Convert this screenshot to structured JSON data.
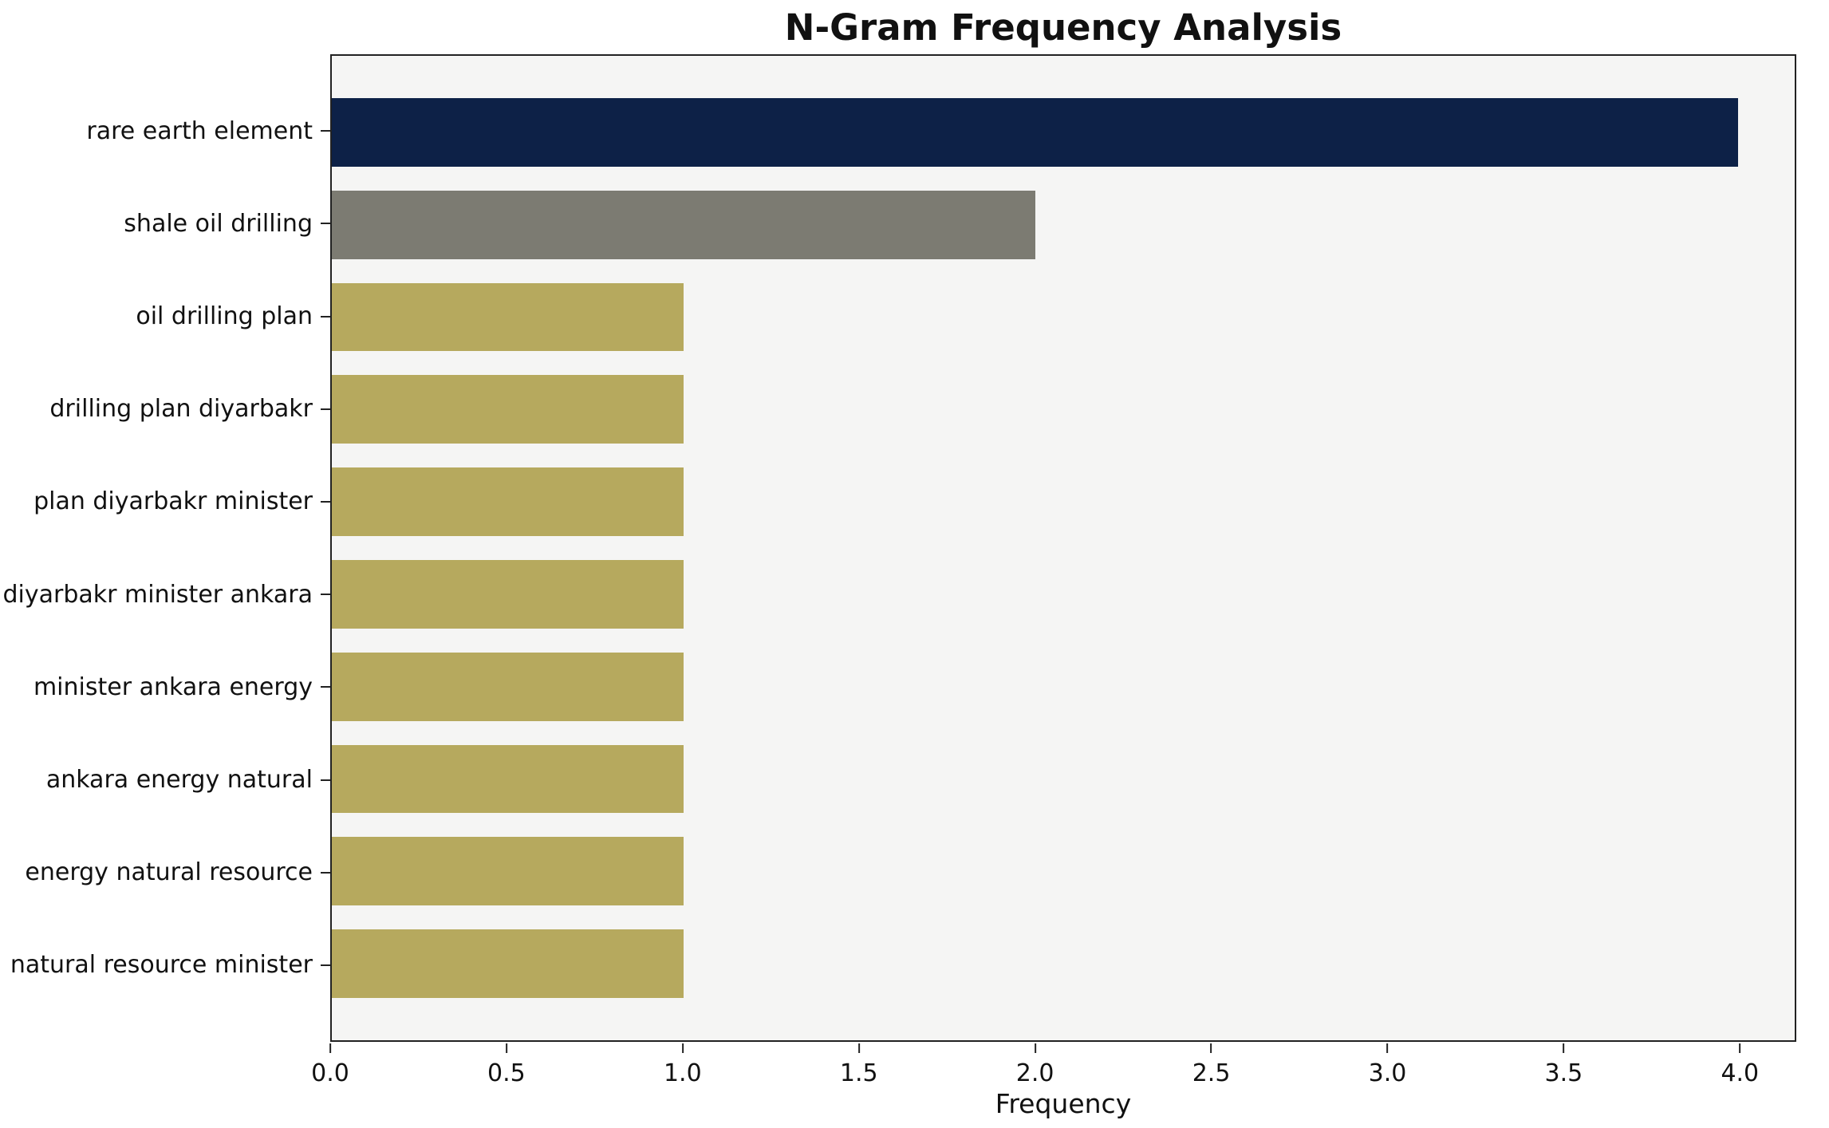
{
  "chart_data": {
    "type": "bar",
    "orientation": "horizontal",
    "title": "N-Gram Frequency Analysis",
    "xlabel": "Frequency",
    "ylabel": "",
    "categories": [
      "rare earth element",
      "shale oil drilling",
      "oil drilling plan",
      "drilling plan diyarbakr",
      "plan diyarbakr minister",
      "diyarbakr minister ankara",
      "minister ankara energy",
      "ankara energy natural",
      "energy natural resource",
      "natural resource minister"
    ],
    "values": [
      4,
      2,
      1,
      1,
      1,
      1,
      1,
      1,
      1,
      1
    ],
    "bar_colors": [
      "#0d2147",
      "#7c7b72",
      "#b6a95e",
      "#b6a95e",
      "#b6a95e",
      "#b6a95e",
      "#b6a95e",
      "#b6a95e",
      "#b6a95e",
      "#b6a95e"
    ],
    "xticks": [
      0.0,
      0.5,
      1.0,
      1.5,
      2.0,
      2.5,
      3.0,
      3.5,
      4.0
    ],
    "xtick_labels": [
      "0.0",
      "0.5",
      "1.0",
      "1.5",
      "2.0",
      "2.5",
      "3.0",
      "3.5",
      "4.0"
    ],
    "xlim": [
      0,
      4.16
    ],
    "grid": false,
    "legend": null,
    "plot_background": "#f5f5f4",
    "page_background": "#ffffff"
  }
}
